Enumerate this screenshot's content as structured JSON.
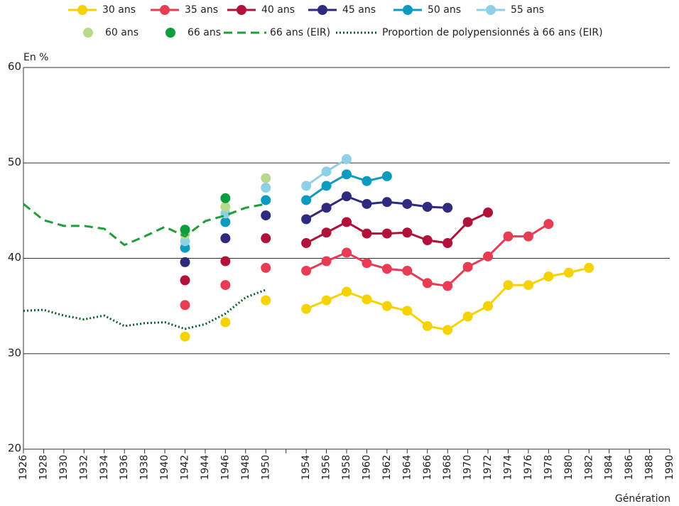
{
  "chart_data": {
    "type": "line",
    "y_label": "En %",
    "x_label": "Génération",
    "categories": [
      "1926",
      "1928",
      "1930",
      "1932",
      "1934",
      "1936",
      "1938",
      "1940",
      "1942",
      "1944",
      "1946",
      "1948",
      "1950",
      null,
      "1954",
      "1956",
      "1958",
      "1960",
      "1962",
      "1964",
      "1966",
      "1968",
      "1970",
      "1972",
      "1974",
      "1976",
      "1978",
      "1980",
      "1982",
      "1984",
      "1986",
      "1988",
      "1990"
    ],
    "ylim": [
      20,
      60
    ],
    "yticks": [
      20,
      30,
      40,
      50,
      60
    ],
    "grid": true,
    "series": [
      {
        "name": "30 ans",
        "color": "#f5d300",
        "style": "line-markers",
        "values": [
          null,
          null,
          null,
          null,
          null,
          null,
          null,
          null,
          31.8,
          null,
          33.3,
          null,
          35.6,
          null,
          34.7,
          35.6,
          36.5,
          35.7,
          35.0,
          34.5,
          32.9,
          32.5,
          33.9,
          35.0,
          37.2,
          37.2,
          38.1,
          38.5,
          39.0,
          null,
          null,
          null,
          null
        ]
      },
      {
        "name": "35 ans",
        "color": "#e63d55",
        "style": "line-markers",
        "values": [
          null,
          null,
          null,
          null,
          null,
          null,
          null,
          null,
          35.1,
          null,
          37.2,
          null,
          39.0,
          null,
          38.7,
          39.7,
          40.6,
          39.5,
          38.9,
          38.7,
          37.4,
          37.1,
          39.1,
          40.2,
          42.3,
          42.3,
          43.6,
          null,
          null,
          null,
          null,
          null,
          null
        ]
      },
      {
        "name": "40 ans",
        "color": "#b0123a",
        "style": "line-markers",
        "values": [
          null,
          null,
          null,
          null,
          null,
          null,
          null,
          null,
          37.7,
          null,
          39.7,
          null,
          42.1,
          null,
          41.6,
          42.7,
          43.8,
          42.6,
          42.6,
          42.7,
          41.9,
          41.6,
          43.8,
          44.8,
          null,
          null,
          null,
          null,
          null,
          null,
          null,
          null,
          null
        ]
      },
      {
        "name": "45 ans",
        "color": "#2e2a7d",
        "style": "line-markers",
        "values": [
          null,
          null,
          null,
          null,
          null,
          null,
          null,
          null,
          39.6,
          null,
          42.1,
          null,
          44.5,
          null,
          44.1,
          45.3,
          46.5,
          45.7,
          45.9,
          45.7,
          45.4,
          45.3,
          null,
          null,
          null,
          null,
          null,
          null,
          null,
          null,
          null,
          null,
          null
        ]
      },
      {
        "name": "50 ans",
        "color": "#0b9bbf",
        "style": "line-markers",
        "values": [
          null,
          null,
          null,
          null,
          null,
          null,
          null,
          null,
          41.1,
          null,
          43.8,
          null,
          46.1,
          null,
          46.1,
          47.6,
          48.8,
          48.1,
          48.6,
          null,
          null,
          null,
          null,
          null,
          null,
          null,
          null,
          null,
          null,
          null,
          null,
          null,
          null
        ]
      },
      {
        "name": "55 ans",
        "color": "#8fd0e6",
        "style": "line-markers",
        "values": [
          null,
          null,
          null,
          null,
          null,
          null,
          null,
          null,
          41.8,
          null,
          44.7,
          null,
          47.4,
          null,
          47.6,
          49.1,
          50.4,
          null,
          null,
          null,
          null,
          null,
          null,
          null,
          null,
          null,
          null,
          null,
          null,
          null,
          null,
          null,
          null
        ]
      },
      {
        "name": "60 ans",
        "color": "#b6d98a",
        "style": "markers",
        "values": [
          null,
          null,
          null,
          null,
          null,
          null,
          null,
          null,
          42.5,
          null,
          45.4,
          null,
          48.4,
          null,
          null,
          null,
          null,
          null,
          null,
          null,
          null,
          null,
          null,
          null,
          null,
          null,
          null,
          null,
          null,
          null,
          null,
          null,
          null
        ]
      },
      {
        "name": "66 ans",
        "color": "#0a9e3f",
        "style": "markers",
        "values": [
          null,
          null,
          null,
          null,
          null,
          null,
          null,
          null,
          43.0,
          null,
          46.3,
          null,
          null,
          null,
          null,
          null,
          null,
          null,
          null,
          null,
          null,
          null,
          null,
          null,
          null,
          null,
          null,
          null,
          null,
          null,
          null,
          null,
          null
        ]
      },
      {
        "name": "66 ans (EIR)",
        "color": "#1f9e3a",
        "style": "dashed",
        "values": [
          45.7,
          44.0,
          43.4,
          43.4,
          43.1,
          41.4,
          42.3,
          43.3,
          42.3,
          43.9,
          44.5,
          45.3,
          45.7,
          null,
          null,
          null,
          null,
          null,
          null,
          null,
          null,
          null,
          null,
          null,
          null,
          null,
          null,
          null,
          null,
          null,
          null,
          null,
          null
        ]
      },
      {
        "name": "Proportion de polypensionnés à 66 ans (EIR)",
        "color": "#0a5b2a",
        "style": "dotted",
        "values": [
          34.5,
          34.6,
          34.0,
          33.6,
          34.0,
          32.9,
          33.2,
          33.3,
          32.6,
          33.1,
          34.2,
          35.9,
          36.7,
          null,
          null,
          null,
          null,
          null,
          null,
          null,
          null,
          null,
          null,
          null,
          null,
          null,
          null,
          null,
          null,
          null,
          null,
          null,
          null
        ]
      }
    ]
  }
}
